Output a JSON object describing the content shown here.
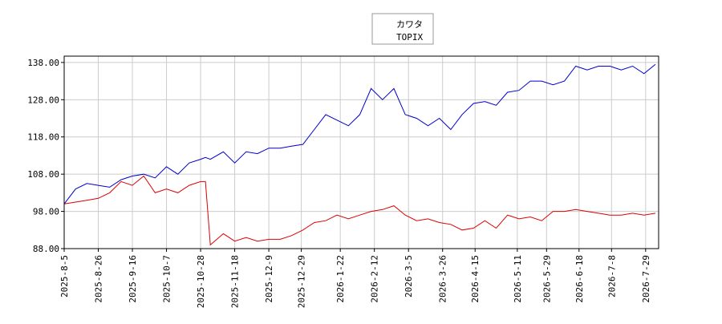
{
  "chart_data": {
    "type": "line",
    "x": [
      "2025-8-5",
      "2025-8-12",
      "2025-8-19",
      "2025-8-26",
      "2025-9-2",
      "2025-9-9",
      "2025-9-16",
      "2025-9-23",
      "2025-9-30",
      "2025-10-7",
      "2025-10-14",
      "2025-10-21",
      "2025-10-28",
      "2025-10-31",
      "2025-11-3",
      "2025-11-11",
      "2025-11-18",
      "2025-11-25",
      "2025-12-2",
      "2025-12-9",
      "2025-12-16",
      "2025-12-23",
      "2025-12-30",
      "2026-1-6",
      "2026-1-13",
      "2026-1-20",
      "2026-1-27",
      "2026-2-3",
      "2026-2-10",
      "2026-2-17",
      "2026-2-24",
      "2026-3-3",
      "2026-3-10",
      "2026-3-17",
      "2026-3-24",
      "2026-3-31",
      "2026-4-7",
      "2026-4-14",
      "2026-4-21",
      "2026-4-28",
      "2026-5-5",
      "2026-5-12",
      "2026-5-19",
      "2026-5-26",
      "2026-6-2",
      "2026-6-9",
      "2026-6-16",
      "2026-6-23",
      "2026-6-30",
      "2026-7-7",
      "2026-7-14",
      "2026-7-21",
      "2026-7-28",
      "2026-8-4"
    ],
    "series": [
      {
        "name": "カワタ",
        "color": "#dd0000",
        "values": [
          100,
          100.5,
          101,
          101.5,
          103,
          106,
          105,
          107.5,
          103,
          104,
          103,
          105,
          106,
          106,
          89,
          92,
          90,
          91,
          90,
          90.5,
          90.5,
          91.5,
          93,
          95,
          95.5,
          97,
          96,
          97,
          98,
          98.5,
          99.5,
          97,
          95.5,
          96,
          95,
          94.5,
          93,
          93.5,
          95.5,
          93.5,
          97,
          96,
          96.5,
          95.5,
          98,
          98,
          98.5,
          98,
          97.5,
          97,
          97,
          97.5,
          97,
          97.5
        ]
      },
      {
        "name": "TOPIX",
        "color": "#0000cc",
        "values": [
          100,
          104,
          105.5,
          105,
          104.5,
          106.5,
          107.5,
          108,
          107,
          110,
          108,
          111,
          112,
          112.5,
          112,
          114,
          111,
          114,
          113.5,
          115,
          115,
          115.5,
          116,
          120,
          124,
          122.5,
          121,
          124,
          131,
          128,
          131,
          124,
          123,
          121,
          123,
          120,
          124,
          127,
          127.5,
          126.5,
          130,
          130.5,
          133,
          133,
          132,
          133,
          137,
          136,
          137,
          137,
          136,
          137,
          135,
          137.5
        ]
      }
    ],
    "xlim": [
      "2025-8-5",
      "2026-8-6"
    ],
    "xticks": [
      "2025-8-5",
      "2025-8-26",
      "2025-9-16",
      "2025-10-7",
      "2025-10-28",
      "2025-11-18",
      "2025-12-9",
      "2025-12-29",
      "2026-1-22",
      "2026-2-12",
      "2026-3-5",
      "2026-3-26",
      "2026-4-15",
      "2026-5-11",
      "2026-5-29",
      "2026-6-18",
      "2026-7-8",
      "2026-7-29"
    ],
    "ylim": [
      88,
      139.7
    ],
    "yticks": [
      {
        "value": 88,
        "label": "88.00"
      },
      {
        "value": 98,
        "label": "98.00"
      },
      {
        "value": 108,
        "label": "108.00"
      },
      {
        "value": 118,
        "label": "118.00"
      },
      {
        "value": 128,
        "label": "128.00"
      },
      {
        "value": 138,
        "label": "138.00"
      }
    ],
    "grid": true
  }
}
